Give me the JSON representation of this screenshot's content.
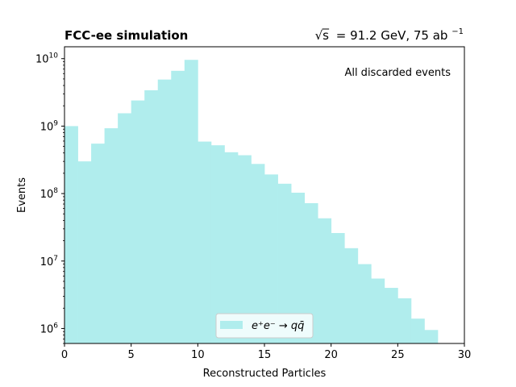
{
  "chart_data": {
    "type": "bar",
    "title_left": "FCC-ee simulation",
    "title_right_pre": "= 91.2 GeV, 75 ab",
    "title_right_sqrt": "√s",
    "title_right_exp": "−1",
    "annotation": "All discarded events",
    "xlabel": "Reconstructed Particles",
    "ylabel": "Events",
    "xlim": [
      0,
      30
    ],
    "ylim": [
      600000,
      15000000000
    ],
    "yscale": "log",
    "xticks": [
      0,
      5,
      10,
      15,
      20,
      25,
      30
    ],
    "yticks": [
      1000000,
      10000000,
      100000000,
      1000000000,
      10000000000
    ],
    "ytick_exponents": [
      "6",
      "7",
      "8",
      "9",
      "10"
    ],
    "ytick_base": "10",
    "bin_width": 1,
    "bin_edges_start": 0,
    "values": [
      1000000000,
      300000000,
      550000000,
      930000000,
      1550000000,
      2400000000,
      3400000000,
      4900000000,
      6600000000,
      9600000000,
      590000000,
      520000000,
      410000000,
      370000000,
      275000000,
      192000000,
      140000000,
      103000000,
      72000000,
      43000000,
      26000000,
      15500000,
      9000000,
      5500000,
      4000000,
      2800000,
      1400000,
      950000
    ],
    "color": "#b0eded",
    "legend": {
      "label": "e⁺e⁻ → qq̄",
      "position": "lower center"
    }
  }
}
